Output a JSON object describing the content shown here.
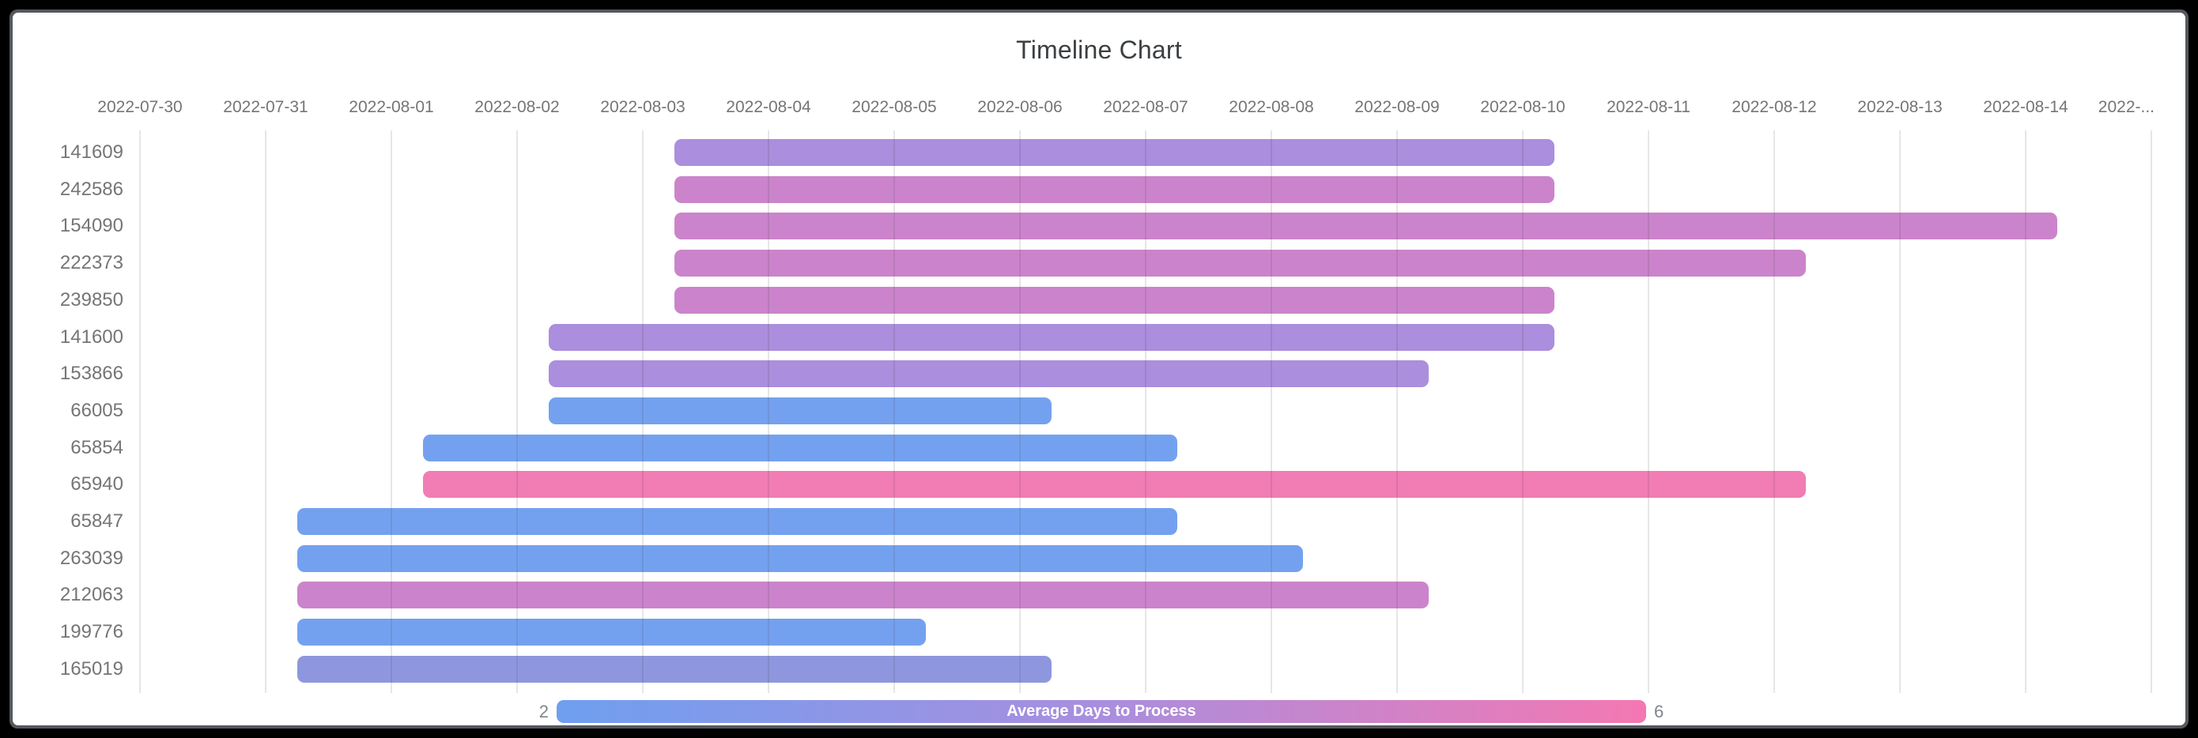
{
  "title": "Timeline Chart",
  "chart_data": {
    "type": "timeline",
    "title": "Timeline Chart",
    "x_axis": {
      "start_date": "2022-07-30",
      "tick_labels": [
        "2022-07-30",
        "2022-07-31",
        "2022-08-01",
        "2022-08-02",
        "2022-08-03",
        "2022-08-04",
        "2022-08-05",
        "2022-08-06",
        "2022-08-07",
        "2022-08-08",
        "2022-08-09",
        "2022-08-10",
        "2022-08-11",
        "2022-08-12",
        "2022-08-13",
        "2022-08-14",
        "2022-..."
      ]
    },
    "rows": [
      {
        "label": "141609",
        "start": "2022-08-03",
        "end": "2022-08-10",
        "color": "#ab8edd"
      },
      {
        "label": "242586",
        "start": "2022-08-03",
        "end": "2022-08-10",
        "color": "#cb84cb"
      },
      {
        "label": "154090",
        "start": "2022-08-03",
        "end": "2022-08-14",
        "color": "#cb84cb"
      },
      {
        "label": "222373",
        "start": "2022-08-03",
        "end": "2022-08-12",
        "color": "#cb84cb"
      },
      {
        "label": "239850",
        "start": "2022-08-03",
        "end": "2022-08-10",
        "color": "#cb84cb"
      },
      {
        "label": "141600",
        "start": "2022-08-02",
        "end": "2022-08-10",
        "color": "#ab8edd"
      },
      {
        "label": "153866",
        "start": "2022-08-02",
        "end": "2022-08-09",
        "color": "#ab8edd"
      },
      {
        "label": "66005",
        "start": "2022-08-02",
        "end": "2022-08-06",
        "color": "#74a1ef"
      },
      {
        "label": "65854",
        "start": "2022-08-01",
        "end": "2022-08-07",
        "color": "#74a1ef"
      },
      {
        "label": "65940",
        "start": "2022-08-01",
        "end": "2022-08-12",
        "color": "#f27cb4"
      },
      {
        "label": "65847",
        "start": "2022-07-31",
        "end": "2022-08-07",
        "color": "#74a1ef"
      },
      {
        "label": "263039",
        "start": "2022-07-31",
        "end": "2022-08-08",
        "color": "#74a1ef"
      },
      {
        "label": "212063",
        "start": "2022-07-31",
        "end": "2022-08-09",
        "color": "#cb84cb"
      },
      {
        "label": "199776",
        "start": "2022-07-31",
        "end": "2022-08-05",
        "color": "#74a1ef"
      },
      {
        "label": "165019",
        "start": "2022-07-31",
        "end": "2022-08-06",
        "color": "#8e97de"
      }
    ],
    "colorbar": {
      "label": "Average Days to Process",
      "min": "2",
      "max": "6",
      "start_color": "#6f9ff0",
      "mid_color": "#a98ede",
      "end_color": "#f478b2"
    },
    "bar_time_of_day_offset_days": 0.25
  }
}
